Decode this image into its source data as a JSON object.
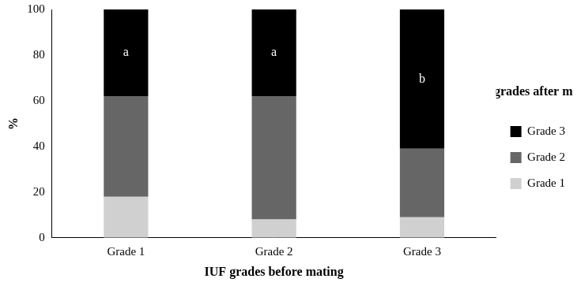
{
  "chart_data": {
    "type": "bar",
    "stacked": true,
    "categories": [
      "Grade 1",
      "Grade 2",
      "Grade 3"
    ],
    "series": [
      {
        "name": "Grade 1",
        "color": "#d0d0d0",
        "values": [
          18,
          8,
          9
        ]
      },
      {
        "name": "Grade 2",
        "color": "#666666",
        "values": [
          44,
          54,
          30
        ]
      },
      {
        "name": "Grade 3",
        "color": "#000000",
        "values": [
          38,
          38,
          61
        ]
      }
    ],
    "x_label": "IUF grades before mating",
    "y_label": "%",
    "legend": "right",
    "legend_title": "IUF grades after mating",
    "ylim": [
      0,
      100
    ],
    "yticks": [
      0,
      20,
      40,
      60,
      80,
      100
    ],
    "grid": false,
    "annotations": [
      {
        "category": "Grade 1",
        "series": "Grade 3",
        "text": "a"
      },
      {
        "category": "Grade 2",
        "series": "Grade 3",
        "text": "a"
      },
      {
        "category": "Grade 3",
        "series": "Grade 3",
        "text": "b"
      }
    ]
  }
}
